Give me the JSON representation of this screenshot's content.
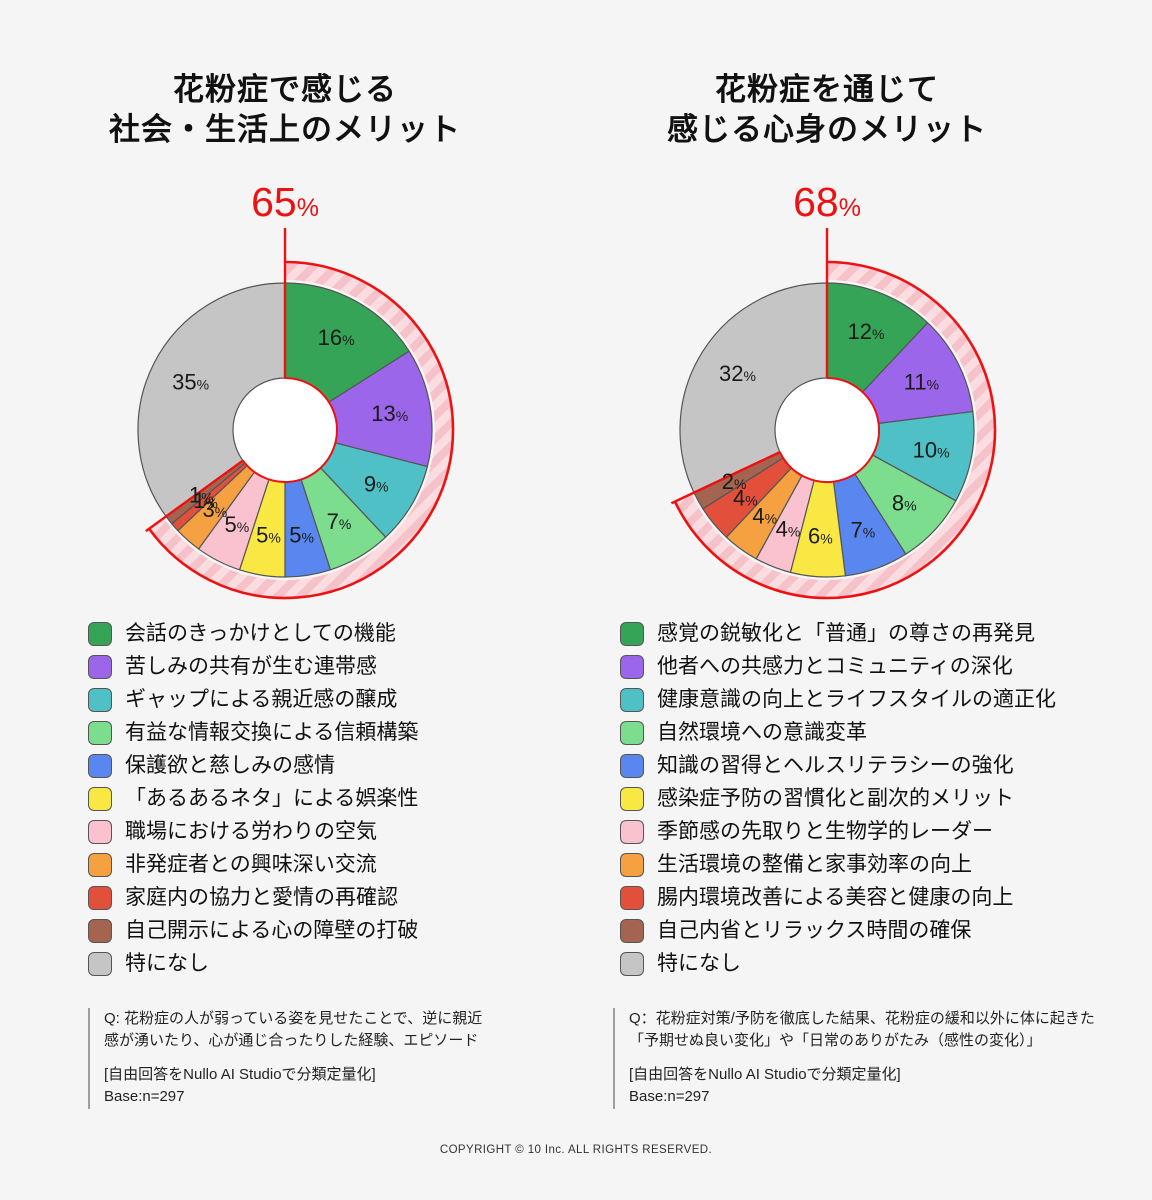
{
  "page": {
    "background": "#f5f5f5",
    "accent": "#ee1111",
    "copyright": "COPYRIGHT © 10 Inc. ALL RIGHTS RESERVED."
  },
  "chart_data": [
    {
      "type": "pie",
      "subtype": "donut",
      "title": "花粉症で感じる 社会・生活上のメリット",
      "title_lines": [
        "花粉症で感じる",
        "社会・生活上のメリット"
      ],
      "highlight": {
        "percent": 65,
        "label": "65",
        "unit": "%"
      },
      "categories": [
        "会話のきっかけとしての機能",
        "苦しみの共有が生む連帯感",
        "ギャップによる親近感の醸成",
        "有益な情報交換による信頼構築",
        "保護欲と慈しみの感情",
        "「あるあるネタ」による娯楽性",
        "職場における労わりの空気",
        "非発症者との興味深い交流",
        "家庭内の協力と愛情の再確認",
        "自己開示による心の障壁の打破",
        "特になし"
      ],
      "values": [
        16,
        13,
        9,
        7,
        5,
        5,
        5,
        3,
        1,
        1,
        35
      ],
      "colors": [
        "#35a457",
        "#9c66ea",
        "#4fc0c5",
        "#7bdd8d",
        "#5a87ef",
        "#f9e843",
        "#f9c2ce",
        "#f5a041",
        "#e2503c",
        "#a5644f",
        "#c5c5c5"
      ],
      "legend_position": "bottom",
      "question": "Q: 花粉症の人が弱っている姿を見せたことで、逆に親近感が湧いたり、心が通じ合ったりした経験、エピソード",
      "method": "[自由回答をNullo AI Studioで分類定量化]",
      "base": "Base:n=297"
    },
    {
      "type": "pie",
      "subtype": "donut",
      "title": "花粉症を通じて 感じる心身のメリット",
      "title_lines": [
        "花粉症を通じて",
        "感じる心身のメリット"
      ],
      "highlight": {
        "percent": 68,
        "label": "68",
        "unit": "%"
      },
      "categories": [
        "感覚の鋭敏化と「普通」の尊さの再発見",
        "他者への共感力とコミュニティの深化",
        "健康意識の向上とライフスタイルの適正化",
        "自然環境への意識変革",
        "知識の習得とヘルスリテラシーの強化",
        "感染症予防の習慣化と副次的メリット",
        "季節感の先取りと生物学的レーダー",
        "生活環境の整備と家事効率の向上",
        "腸内環境改善による美容と健康の向上",
        "自己内省とリラックス時間の確保",
        "特になし"
      ],
      "values": [
        12,
        11,
        10,
        8,
        7,
        6,
        4,
        4,
        4,
        2,
        32
      ],
      "colors": [
        "#35a457",
        "#9c66ea",
        "#4fc0c5",
        "#7bdd8d",
        "#5a87ef",
        "#f9e843",
        "#f9c2ce",
        "#f5a041",
        "#e2503c",
        "#a5644f",
        "#c5c5c5"
      ],
      "legend_position": "bottom",
      "question": "Q：花粉症対策/予防を徹底した結果、花粉症の緩和以外に体に起きた「予期せぬ良い変化」や「日常のありがたみ（感性の変化）」",
      "method": "[自由回答をNullo AI Studioで分類定量化]",
      "base": "Base:n=297"
    }
  ]
}
